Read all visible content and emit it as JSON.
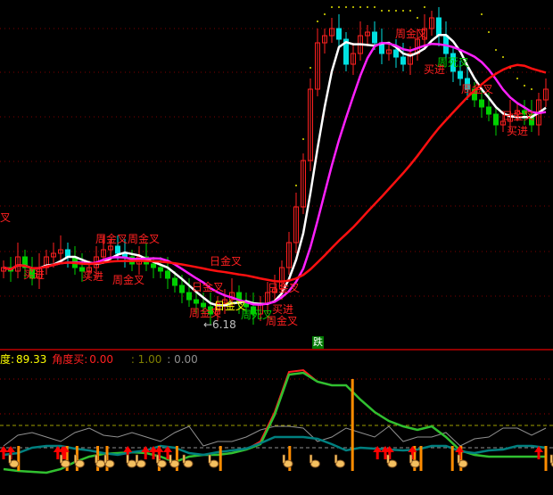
{
  "header": {
    "angle_label": "度:",
    "angle_value": "89.33",
    "buy_label": "角度买:",
    "buy_value": "0.00",
    "ref1": ": 1.00",
    "ref2": ": 0.00"
  },
  "badge": "跌",
  "low_marker": "←6.18",
  "colors": {
    "background": "#000000",
    "up": "#ff2020",
    "down": "#00d000",
    "down_high": "#00e0e0",
    "ma5": "#ffffff",
    "ma10": "#ff20ff",
    "ma30": "#ff1010",
    "divider": "#c00000",
    "angle_line": "#30c030",
    "fast_line": "#ff2020",
    "teal_line": "#008080",
    "gray_line": "#909090",
    "signal_bar": "#ff8c00"
  },
  "signal_labels": [
    {
      "text": "叉",
      "color": "#ff2020"
    },
    {
      "text": "买进",
      "color": "#ff2020"
    },
    {
      "text": "买进",
      "color": "#ff2020"
    },
    {
      "text": "周金叉",
      "color": "#ff2020"
    },
    {
      "text": "周金叉",
      "color": "#ff2020"
    },
    {
      "text": "周金叉",
      "color": "#ff2020"
    },
    {
      "text": "日金叉",
      "color": "#ff2020"
    },
    {
      "text": "日金叉",
      "color": "#ff2020"
    },
    {
      "text": "周金叉",
      "color": "#ff2020"
    },
    {
      "text": "日金叉",
      "color": "#ffff00"
    },
    {
      "text": "周死叉",
      "color": "#00d000"
    },
    {
      "text": "日金叉",
      "color": "#ff2020"
    },
    {
      "text": "买进",
      "color": "#ff2020"
    },
    {
      "text": "周金叉",
      "color": "#ff2020"
    },
    {
      "text": "周金叉",
      "color": "#ff2020"
    },
    {
      "text": "周死叉",
      "color": "#00d000"
    },
    {
      "text": "买进",
      "color": "#ff2020"
    },
    {
      "text": "周金叉",
      "color": "#ff2020"
    },
    {
      "text": "日金叉",
      "color": "#ff2020"
    },
    {
      "text": "买进",
      "color": "#ff2020"
    }
  ],
  "chart_data": [
    {
      "type": "candlestick",
      "panel": "price",
      "ylim": [
        0,
        100
      ],
      "grid": "dotted horizontal",
      "close": [
        25,
        24,
        28,
        25,
        22,
        25,
        28,
        29,
        30,
        28,
        25,
        24,
        25,
        28,
        30,
        31,
        29,
        28,
        26,
        28,
        26,
        25,
        24,
        22,
        20,
        18,
        16,
        15,
        14,
        12,
        15,
        16,
        18,
        15,
        14,
        12,
        15,
        18,
        19,
        25,
        32,
        42,
        55,
        75,
        88,
        90,
        92,
        89,
        82,
        85,
        90,
        91,
        88,
        85,
        86,
        84,
        82,
        85,
        89,
        92,
        95,
        90,
        85,
        80,
        78,
        75,
        72,
        70,
        68,
        65,
        66,
        68,
        69,
        68,
        65,
        72,
        75
      ],
      "overlays": [
        "MA5",
        "MA10",
        "MA30"
      ]
    },
    {
      "type": "line",
      "panel": "indicator",
      "ylim": [
        -10,
        120
      ],
      "x_step_candles": 2,
      "series": {
        "angle": [
          4,
          2,
          1,
          0,
          4,
          12,
          18,
          21,
          22,
          23,
          22,
          18,
          12,
          18,
          20,
          20,
          22,
          26,
          32,
          65,
          110,
          112,
          102,
          98,
          98,
          82,
          68,
          58,
          52,
          48,
          52,
          40,
          25,
          20,
          18,
          18,
          18,
          18,
          18
        ],
        "teal": [
          20,
          22,
          28,
          30,
          30,
          27,
          25,
          22,
          20,
          23,
          25,
          30,
          28,
          22,
          20,
          23,
          25,
          27,
          33,
          40,
          40,
          40,
          38,
          32,
          25,
          28,
          27,
          26,
          25,
          26,
          30,
          30,
          24,
          22,
          25,
          26,
          30,
          30,
          28
        ],
        "gray": [
          30,
          42,
          45,
          40,
          35,
          45,
          50,
          42,
          40,
          45,
          40,
          35,
          45,
          52,
          30,
          35,
          35,
          40,
          48,
          52,
          52,
          50,
          35,
          40,
          50,
          45,
          40,
          52,
          35,
          40,
          40,
          45,
          30,
          38,
          40,
          50,
          50,
          42,
          50
        ]
      },
      "reference_lines": [
        89.33,
        1.0,
        0.0
      ],
      "buy_arrows_at": [
        0,
        1,
        7.6,
        8.3,
        8.6,
        17.4,
        19.9,
        21,
        21.8,
        23,
        52.4,
        53.5,
        54.1,
        57.3,
        63.9,
        75
      ],
      "hand_markers_at": [
        1.1,
        8.3,
        10.3,
        13.2,
        14.5,
        17.6,
        18.9,
        21.8,
        23.6,
        25.5,
        29.1,
        39.5,
        43.3,
        46.8,
        54.1,
        57.3,
        64,
        77
      ],
      "signal_bars_at": [
        2.1,
        8.9,
        10.3,
        13.2,
        14.5,
        21.8,
        24.3,
        30.4,
        40.1,
        48.9,
        57.6,
        58.5,
        62.9,
        64.1,
        76
      ]
    }
  ]
}
